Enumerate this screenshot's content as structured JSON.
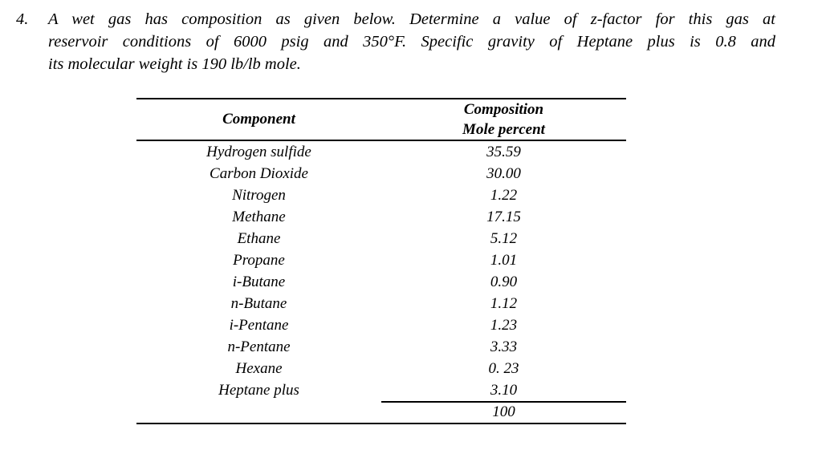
{
  "problem": {
    "number": "4.",
    "lines": [
      "A wet gas has composition as given below. Determine a value of z-factor for this gas at",
      "reservoir conditions of 6000 psig and 350°F. Specific gravity of Heptane plus is 0.8 and",
      "its molecular weight is 190 lb/lb mole."
    ]
  },
  "table": {
    "headers": {
      "component": "Component",
      "composition_line1": "Composition",
      "composition_line2": "Mole percent"
    },
    "rows": [
      {
        "component": "Hydrogen sulfide",
        "mole_percent": "35.59"
      },
      {
        "component": "Carbon Dioxide",
        "mole_percent": "30.00"
      },
      {
        "component": "Nitrogen",
        "mole_percent": "1.22"
      },
      {
        "component": "Methane",
        "mole_percent": "17.15"
      },
      {
        "component": "Ethane",
        "mole_percent": "5.12"
      },
      {
        "component": "Propane",
        "mole_percent": "1.01"
      },
      {
        "component": "i-Butane",
        "mole_percent": "0.90"
      },
      {
        "component": "n-Butane",
        "mole_percent": "1.12"
      },
      {
        "component": "i-Pentane",
        "mole_percent": "1.23"
      },
      {
        "component": "n-Pentane",
        "mole_percent": "3.33"
      },
      {
        "component": "Hexane",
        "mole_percent": "0. 23"
      },
      {
        "component": "Heptane plus",
        "mole_percent": "3.10"
      }
    ],
    "total": "100"
  }
}
